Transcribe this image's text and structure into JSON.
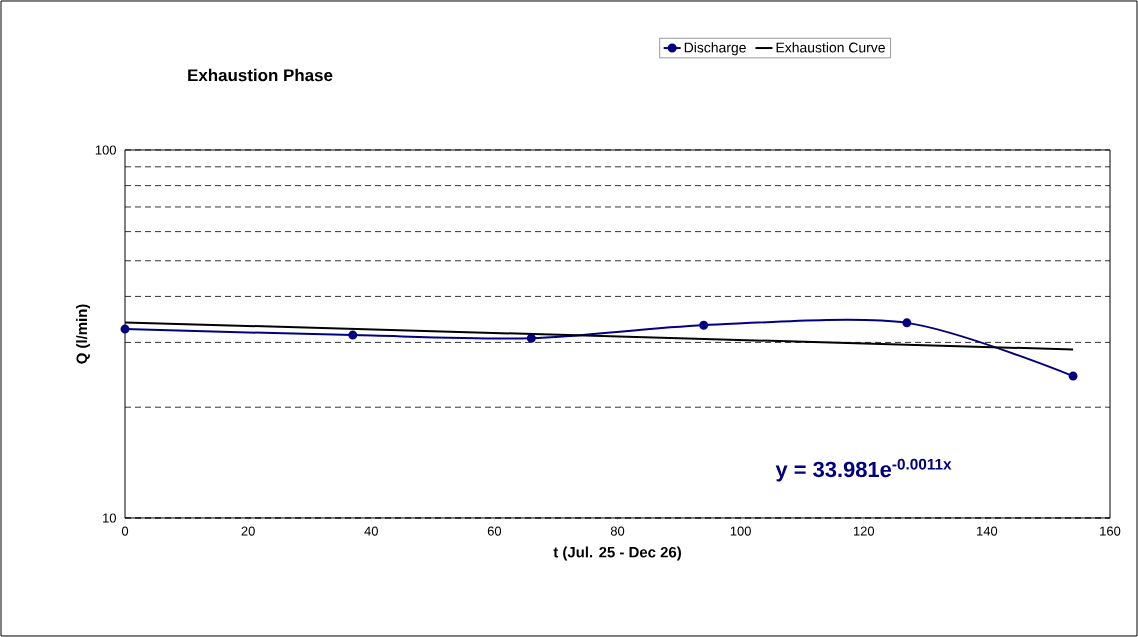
{
  "chart_data": {
    "type": "line",
    "title": "Exhaustion Phase",
    "xlabel": "t (Jul. 25 - Dec 26)",
    "ylabel": "Q (l/min)",
    "series": [
      {
        "name": "Discharge",
        "color": "#000080",
        "x": [
          0,
          37,
          66,
          94,
          127,
          154
        ],
        "values": [
          32.6,
          31.4,
          30.8,
          33.4,
          33.9,
          24.3
        ],
        "marker": "circle"
      },
      {
        "name": "Exhaustion Curve",
        "color": "#000000",
        "x": [
          0,
          154
        ],
        "values": [
          34.0,
          28.7
        ],
        "marker": "none"
      }
    ],
    "xlim": [
      0,
      160
    ],
    "xticks": [
      0,
      20,
      40,
      60,
      80,
      100,
      120,
      140,
      160
    ],
    "ylim": [
      10,
      100
    ],
    "yticks": [
      10,
      100
    ],
    "log": "y",
    "grid": "y",
    "legend": "top",
    "line_style": "solid",
    "annotations": [
      "y = 33.981e$^{-0.0011x}$"
    ]
  }
}
